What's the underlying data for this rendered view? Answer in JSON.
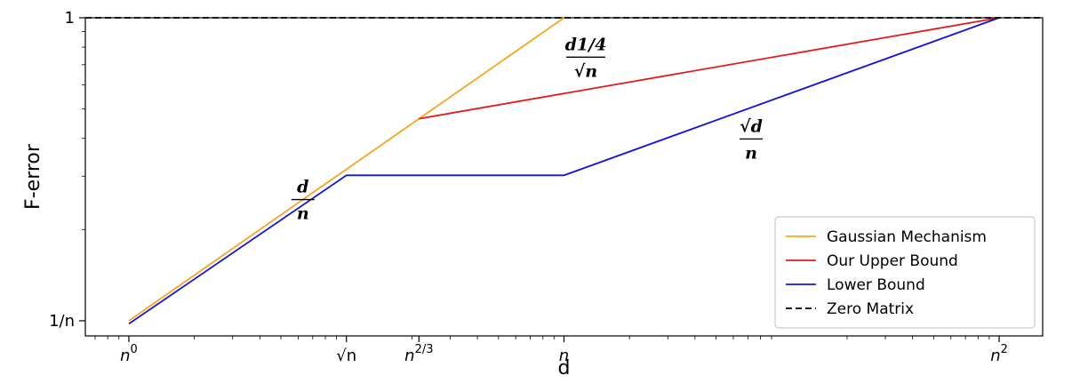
{
  "chart_data": {
    "type": "line",
    "title": "",
    "xlabel": "d",
    "ylabel": "F-error",
    "x_scale": "log",
    "y_scale": "log",
    "x_unit_note": "x values are exponents of n (d = n^x)",
    "y_unit_note": "y values are exponents of n (F-error = n^y)",
    "xlim": [
      -0.1,
      2.1
    ],
    "ylim": [
      -1.05,
      0
    ],
    "grid": false,
    "legend_position": "lower-right",
    "x_ticks": [
      {
        "value": 0,
        "base": "n",
        "exp": "0",
        "label": "n^0"
      },
      {
        "value": 0.5,
        "base": "√n",
        "exp": "",
        "label": "√n"
      },
      {
        "value": 0.6667,
        "base": "n",
        "exp": "2/3",
        "label": "n^{2/3}"
      },
      {
        "value": 1,
        "base": "n",
        "exp": "",
        "label": "n"
      },
      {
        "value": 2,
        "base": "n",
        "exp": "2",
        "label": "n^2"
      }
    ],
    "y_ticks": [
      {
        "value": 0,
        "label": "1"
      },
      {
        "value": -1,
        "label": "1/n"
      }
    ],
    "series": [
      {
        "name": "Gaussian Mechanism",
        "color": "#f5a623",
        "dash": "",
        "x": [
          0,
          1
        ],
        "y": [
          -1,
          0
        ]
      },
      {
        "name": "Our Upper Bound",
        "color": "#e31a1c",
        "dash": "",
        "x": [
          0.6667,
          2
        ],
        "y": [
          -0.3333,
          0
        ]
      },
      {
        "name": "Lower Bound",
        "color": "#1515d6",
        "dash": "",
        "x": [
          0,
          0.5,
          1,
          2
        ],
        "y": [
          -1.01,
          -0.52,
          -0.52,
          0
        ]
      },
      {
        "name": "Zero Matrix",
        "color": "#000000",
        "dash": "7,4",
        "x": [
          -0.1,
          2.1
        ],
        "y": [
          0,
          0
        ]
      }
    ],
    "annotations": [
      {
        "id": "d-over-n",
        "num": "d",
        "den": "n",
        "x": 0.4,
        "y": -0.6
      },
      {
        "id": "d14-over-sqrtn",
        "num": "d1/4",
        "den": "√n",
        "x": 1.05,
        "y": -0.13
      },
      {
        "id": "sqrtd-over-n",
        "num": "√d",
        "den": "n",
        "x": 1.43,
        "y": -0.4
      }
    ]
  }
}
